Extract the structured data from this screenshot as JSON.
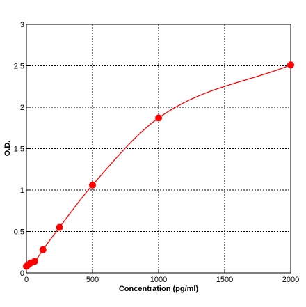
{
  "chart_data": {
    "type": "scatter",
    "xlabel": "Concentration (pg/ml)",
    "ylabel": "O.D.",
    "xlim": [
      0,
      2000
    ],
    "ylim": [
      0,
      3
    ],
    "x_ticks": [
      0,
      500,
      1000,
      1500,
      2000
    ],
    "x_tick_labels": [
      "0",
      "500",
      "1000",
      "1500",
      "2000"
    ],
    "y_ticks": [
      0,
      0.5,
      1,
      1.5,
      2,
      2.5,
      3
    ],
    "y_tick_labels": [
      "0",
      "0.5",
      "1",
      "1.5",
      "2",
      "2.5",
      "3"
    ],
    "grid": true,
    "legend": "none",
    "points": {
      "x": [
        0,
        15.6,
        31.25,
        62.5,
        125,
        250,
        500,
        1000,
        2000
      ],
      "y": [
        0.08,
        0.1,
        0.12,
        0.14,
        0.28,
        0.55,
        1.06,
        1.87,
        2.51
      ]
    },
    "curve_color": "#ff0000",
    "marker_color": "#ff0000"
  }
}
